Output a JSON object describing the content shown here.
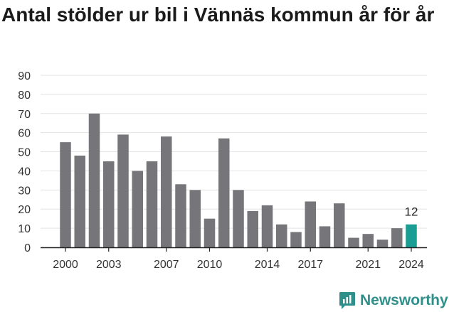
{
  "title": "Antal stölder ur bil i Vännäs kommun år för år",
  "brand": {
    "name": "Newsworthy",
    "color": "#2f8f8a"
  },
  "chart_data": {
    "type": "bar",
    "title": "Antal stölder ur bil i Vännäs kommun år för år",
    "xlabel": "",
    "ylabel": "",
    "categories": [
      2000,
      2001,
      2002,
      2003,
      2004,
      2005,
      2006,
      2007,
      2008,
      2009,
      2010,
      2011,
      2012,
      2013,
      2014,
      2015,
      2016,
      2017,
      2018,
      2019,
      2020,
      2021,
      2022,
      2023,
      2024
    ],
    "values": [
      55,
      48,
      70,
      45,
      59,
      40,
      45,
      58,
      33,
      30,
      15,
      57,
      30,
      19,
      22,
      12,
      8,
      24,
      11,
      23,
      5,
      7,
      4,
      10,
      12
    ],
    "ylim": [
      0,
      90
    ],
    "yticks": [
      0,
      10,
      20,
      30,
      40,
      50,
      60,
      70,
      80,
      90
    ],
    "xticks": [
      2000,
      2003,
      2007,
      2010,
      2014,
      2017,
      2021,
      2024
    ],
    "grid": true,
    "bar_color": "#76757a",
    "highlight_color": "#1a9e93",
    "highlight_category": 2024,
    "highlight_label": "12"
  }
}
